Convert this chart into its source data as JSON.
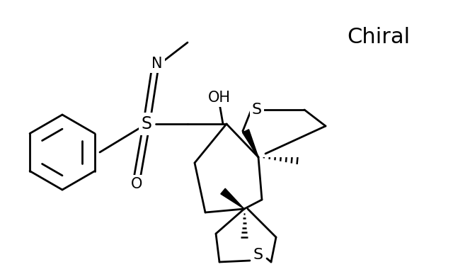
{
  "background_color": "#ffffff",
  "text_color": "#000000",
  "line_color": "#000000",
  "chiral_label": "Chiral",
  "chiral_fontsize": 22,
  "label_OH": "OH",
  "label_S_top": "S",
  "label_S_bottom": "S",
  "label_S_sulfonimidoyl": "S",
  "label_N": "N",
  "label_O": "O",
  "figsize": [
    6.4,
    3.94
  ],
  "dpi": 100
}
